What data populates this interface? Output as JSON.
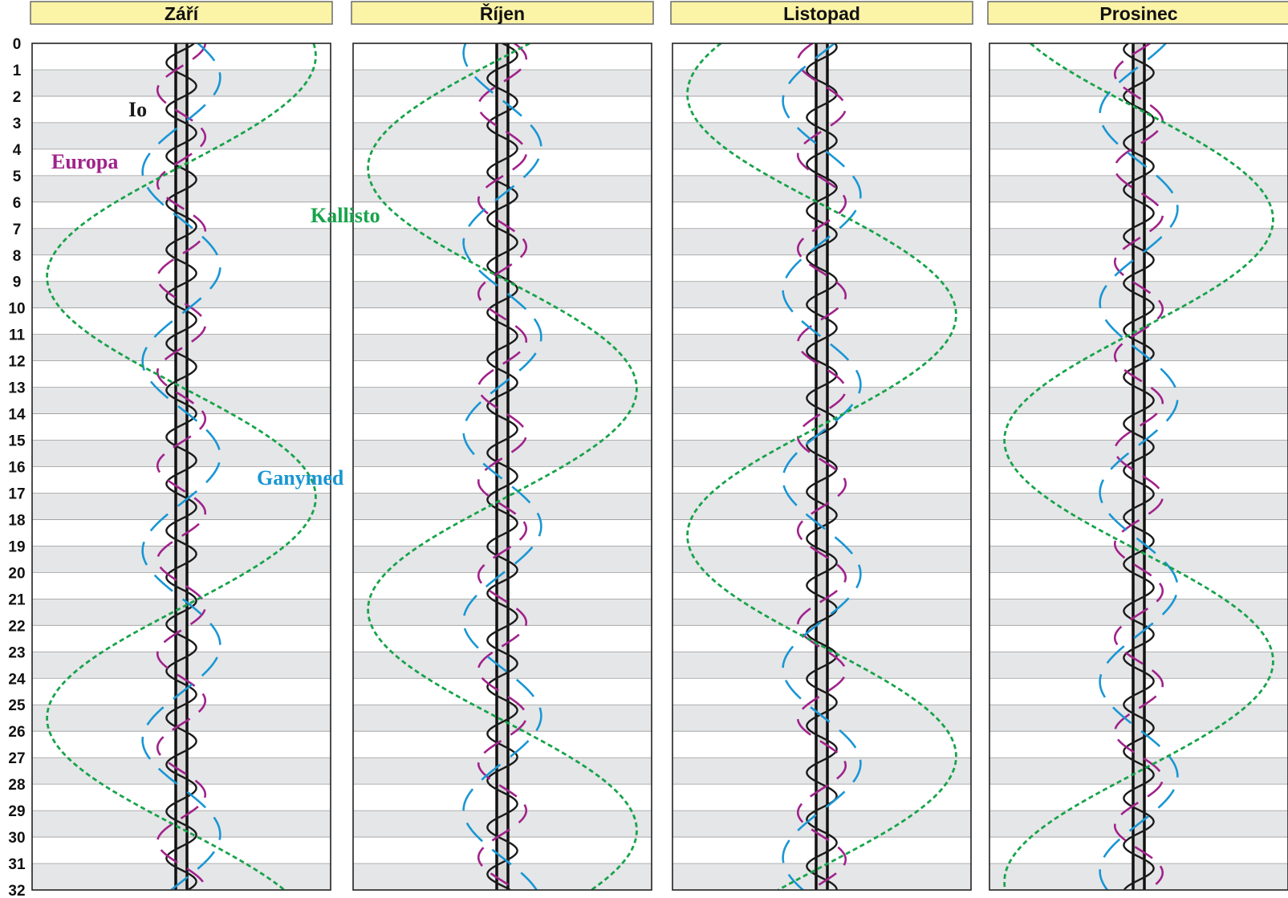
{
  "months": [
    "Září",
    "Říjen",
    "Listopad",
    "Prosinec"
  ],
  "day_ticks": [
    "0",
    "1",
    "2",
    "3",
    "4",
    "5",
    "6",
    "7",
    "8",
    "9",
    "10",
    "11",
    "12",
    "13",
    "14",
    "15",
    "16",
    "17",
    "18",
    "19",
    "20",
    "21",
    "22",
    "23",
    "24",
    "25",
    "26",
    "27",
    "28",
    "29",
    "30",
    "31",
    "32"
  ],
  "moon_labels": {
    "io": "Io",
    "europa": "Europa",
    "kallisto": "Kallisto",
    "ganymed": "Ganymed"
  },
  "colors": {
    "header_bg": "#fbf3a6",
    "header_border": "#6b6b6b",
    "band_gray": "#e5e6e8",
    "io": "#1a1a1a",
    "europa": "#a0228a",
    "ganymed": "#1896d4",
    "kallisto": "#17a34a",
    "jupiter_fill": "#d9d9d9"
  },
  "chart_data": {
    "type": "line",
    "y_axis": {
      "range": [
        0,
        32
      ],
      "ticks": "0-32 (den v měsíci)"
    },
    "x_axis": {
      "meaning": "úhlová vzdálenost měsíce od Jupiteru (±)",
      "range_jupiter_radii": [
        -30,
        30
      ]
    },
    "series": [
      {
        "name": "Io",
        "period_days": 1.769,
        "amplitude_rel": 0.1,
        "style": "solid",
        "phase_days": [
          0.6,
          0.0,
          0.3,
          1.1
        ]
      },
      {
        "name": "Europa",
        "period_days": 3.551,
        "amplitude_rel": 0.16,
        "style": "dashed",
        "phase_days": [
          0.9,
          0.3,
          2.0,
          1.5
        ]
      },
      {
        "name": "Ganymed",
        "period_days": 7.155,
        "amplitude_rel": 0.26,
        "style": "long-dashed",
        "phase_days": [
          0.5,
          5.0,
          3.2,
          2.7
        ]
      },
      {
        "name": "Kallisto",
        "period_days": 16.689,
        "amplitude_rel": 0.9,
        "style": "dotted",
        "phase_days": [
          3.7,
          7.8,
          10.6,
          14.2
        ]
      }
    ]
  }
}
